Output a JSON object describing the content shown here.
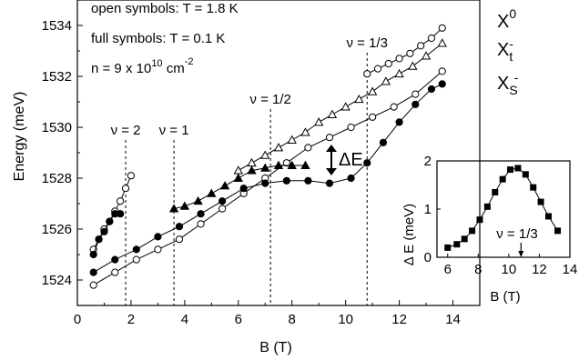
{
  "chart_data": [
    {
      "type": "scatter",
      "xlabel": "B (T)",
      "ylabel": "Energy (meV)",
      "xlim": [
        0,
        15
      ],
      "ylim": [
        1523,
        1535
      ],
      "xticks": [
        "0",
        "2",
        "4",
        "6",
        "8",
        "10",
        "12",
        "14"
      ],
      "yticks": [
        "1524",
        "1526",
        "1528",
        "1530",
        "1532",
        "1534"
      ],
      "grid": false,
      "annotations": {
        "open": "open symbols: T = 1.8 K",
        "full": "full symbols: T = 0.1 K",
        "density": {
          "text": "n = 9 x 10",
          "exp": "10",
          "unit": " cm",
          "unit_exp": "-2"
        },
        "delta": "ΔE"
      },
      "filling_factors": [
        {
          "label": "ν = 2",
          "x": 1.8
        },
        {
          "label": "ν = 1",
          "x": 3.6
        },
        {
          "label": "ν = 1/2",
          "x": 7.2
        },
        {
          "label": "ν = 1/3",
          "x": 10.8
        }
      ],
      "series_labels": [
        {
          "base": "X",
          "sup": "0",
          "sub": ""
        },
        {
          "base": "X",
          "sup": "-",
          "sub": "t"
        },
        {
          "base": "X",
          "sup": "-",
          "sub": "S"
        }
      ],
      "series": [
        {
          "marker": "open-circle",
          "x": [
            0.6,
            0.8,
            1.0,
            1.2,
            1.4,
            1.6,
            1.8,
            2.0
          ],
          "values": [
            1525.2,
            1525.6,
            1526.0,
            1526.3,
            1526.7,
            1527.1,
            1527.6,
            1528.1
          ]
        },
        {
          "marker": "filled-circle",
          "x": [
            0.6,
            0.8,
            1.0,
            1.2,
            1.4,
            1.6
          ],
          "values": [
            1525.0,
            1525.6,
            1525.9,
            1526.3,
            1526.6,
            1526.6
          ]
        },
        {
          "marker": "open-circle",
          "x": [
            10.8,
            11.2,
            11.6,
            12.0,
            12.4,
            12.8,
            13.2,
            13.6
          ],
          "values": [
            1532.1,
            1532.3,
            1532.5,
            1532.7,
            1532.9,
            1533.2,
            1533.5,
            1533.9
          ]
        },
        {
          "marker": "open-triangle",
          "x": [
            6.0,
            6.5,
            7.0,
            7.5,
            8.0,
            8.5,
            9.0,
            9.5,
            10.0,
            10.5,
            11.0,
            11.5,
            12.0,
            12.5,
            13.0,
            13.6
          ],
          "values": [
            1528.3,
            1528.6,
            1528.9,
            1529.2,
            1529.5,
            1529.8,
            1530.2,
            1530.5,
            1530.8,
            1531.1,
            1531.4,
            1531.8,
            1532.1,
            1532.4,
            1532.8,
            1533.3
          ]
        },
        {
          "marker": "open-circle",
          "x": [
            0.6,
            1.4,
            2.2,
            3.0,
            3.8,
            4.6,
            5.4,
            6.2,
            7.0,
            7.8,
            8.6,
            9.4,
            10.2,
            11.0,
            11.8,
            12.6,
            13.6
          ],
          "values": [
            1523.8,
            1524.3,
            1524.8,
            1525.2,
            1525.6,
            1526.2,
            1526.8,
            1527.4,
            1528.0,
            1528.6,
            1529.2,
            1529.6,
            1530.0,
            1530.4,
            1530.8,
            1531.3,
            1532.2
          ]
        },
        {
          "marker": "filled-triangle",
          "x": [
            3.6,
            4.0,
            4.5,
            5.0,
            5.5,
            6.0,
            6.5,
            7.0,
            7.5,
            8.0,
            8.5
          ],
          "values": [
            1526.8,
            1526.9,
            1527.1,
            1527.4,
            1527.7,
            1528.0,
            1528.3,
            1528.4,
            1528.5,
            1528.5,
            1528.5
          ]
        },
        {
          "marker": "filled-circle",
          "x": [
            0.6,
            1.4,
            2.2,
            3.0,
            3.8,
            4.6,
            5.4,
            6.2,
            7.0,
            7.8,
            8.6,
            9.4,
            10.2,
            10.8,
            11.4,
            12.0,
            12.6,
            13.2,
            13.6
          ],
          "values": [
            1524.3,
            1524.8,
            1525.2,
            1525.7,
            1526.1,
            1526.6,
            1527.1,
            1527.6,
            1527.8,
            1527.9,
            1527.9,
            1527.8,
            1528.0,
            1528.6,
            1529.4,
            1530.2,
            1530.9,
            1531.5,
            1531.7
          ]
        }
      ]
    },
    {
      "type": "line",
      "inset": true,
      "xlabel": "B (T)",
      "ylabel": "Δ E (meV)",
      "xlim": [
        5.3,
        14
      ],
      "ylim": [
        0,
        2
      ],
      "xticks": [
        "6",
        "8",
        "10",
        "12",
        "14"
      ],
      "yticks": [
        "0",
        "1",
        "2"
      ],
      "arrow_label": "ν = 1/3",
      "arrow_x": 10.8,
      "series": [
        {
          "marker": "filled-square",
          "x": [
            6.0,
            6.6,
            7.1,
            7.6,
            8.1,
            8.6,
            9.1,
            9.6,
            10.1,
            10.6,
            11.1,
            11.6,
            12.1,
            12.6,
            13.2
          ],
          "values": [
            0.2,
            0.27,
            0.38,
            0.55,
            0.78,
            1.05,
            1.35,
            1.62,
            1.82,
            1.85,
            1.72,
            1.45,
            1.15,
            0.85,
            0.55
          ]
        }
      ]
    }
  ]
}
